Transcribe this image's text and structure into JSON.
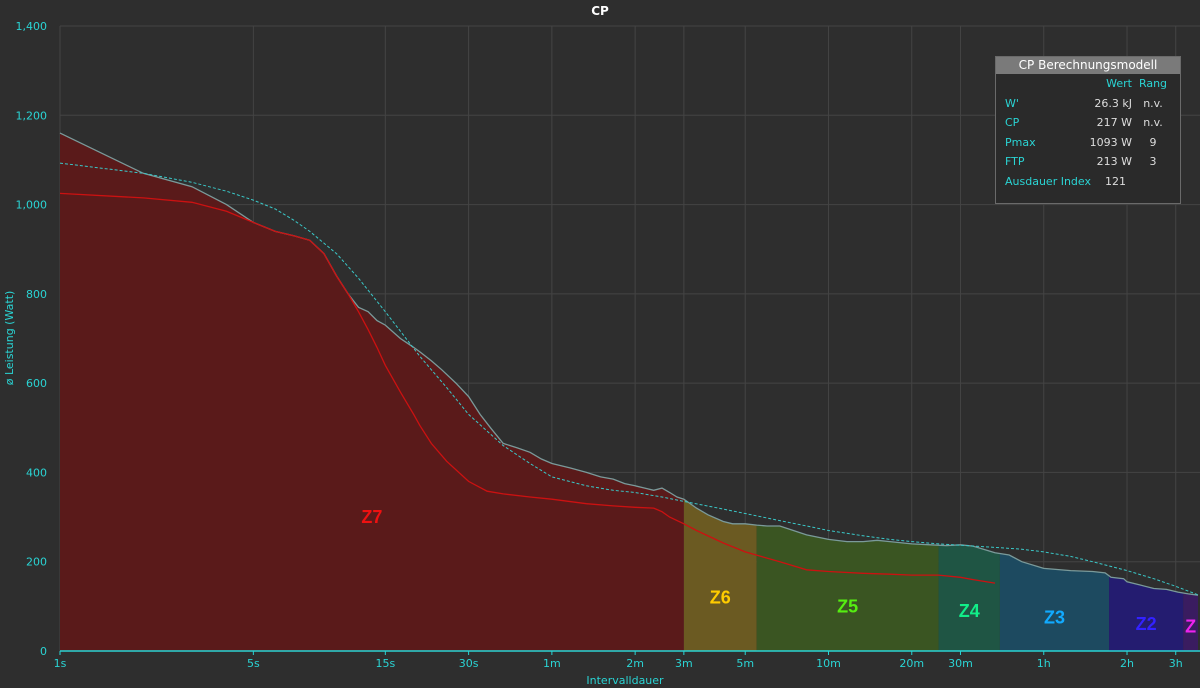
{
  "chart_data": {
    "type": "area",
    "title": "CP",
    "xlabel": "Intervalldauer",
    "ylabel": "ø Leistung (Watt)",
    "xscale": "log",
    "ylim": [
      0,
      1400
    ],
    "yticks": [
      0,
      200,
      400,
      600,
      800,
      1000,
      1200,
      1400
    ],
    "ytick_labels": [
      "0",
      "200",
      "400",
      "600",
      "800",
      "1,000",
      "1,200",
      "1,400"
    ],
    "xticks": [
      {
        "s": 1,
        "label": "1s"
      },
      {
        "s": 5,
        "label": "5s"
      },
      {
        "s": 15,
        "label": "15s"
      },
      {
        "s": 30,
        "label": "30s"
      },
      {
        "s": 60,
        "label": "1m"
      },
      {
        "s": 120,
        "label": "2m"
      },
      {
        "s": 180,
        "label": "3m"
      },
      {
        "s": 300,
        "label": "5m"
      },
      {
        "s": 600,
        "label": "10m"
      },
      {
        "s": 1200,
        "label": "20m"
      },
      {
        "s": 1800,
        "label": "30m"
      },
      {
        "s": 3600,
        "label": "1h"
      },
      {
        "s": 7200,
        "label": "2h"
      },
      {
        "s": 10800,
        "label": "3h"
      }
    ],
    "grid": true,
    "xmax_s": 13000,
    "series": [
      {
        "name": "",
        "color": "#7a9a9a",
        "x": [
          1,
          2,
          3,
          4,
          5,
          6,
          7,
          8,
          9,
          10,
          11,
          12,
          13,
          14,
          15,
          17,
          19,
          20,
          22,
          24,
          27,
          30,
          33,
          36,
          40,
          45,
          50,
          55,
          60,
          70,
          80,
          90,
          100,
          110,
          120,
          130,
          140,
          150,
          160,
          170,
          180,
          200,
          220,
          250,
          270,
          300,
          330,
          360,
          400,
          500,
          600,
          700,
          800,
          900,
          1000,
          1200,
          1400,
          1600,
          1800,
          2000,
          2400,
          2700,
          3000,
          3600,
          4500,
          5400,
          6000,
          6300,
          7000,
          7200,
          8000,
          9000,
          10000,
          11000,
          12000,
          13000
        ],
        "y": [
          1160,
          1070,
          1040,
          1000,
          960,
          940,
          930,
          920,
          890,
          840,
          800,
          770,
          760,
          740,
          730,
          700,
          680,
          670,
          650,
          630,
          600,
          570,
          530,
          500,
          465,
          455,
          445,
          430,
          420,
          410,
          400,
          390,
          385,
          375,
          370,
          365,
          360,
          365,
          355,
          345,
          340,
          320,
          305,
          290,
          285,
          285,
          282,
          280,
          280,
          260,
          250,
          245,
          245,
          248,
          245,
          240,
          238,
          236,
          238,
          235,
          220,
          215,
          200,
          185,
          180,
          178,
          175,
          165,
          162,
          155,
          148,
          140,
          138,
          132,
          128,
          125
        ]
      },
      {
        "name": "",
        "color": "#cc1111",
        "x": [
          1,
          2,
          3,
          4,
          5,
          6,
          7,
          8,
          9,
          10,
          11,
          12,
          13,
          14,
          15,
          17,
          19,
          20,
          22,
          25,
          30,
          35,
          40,
          50,
          60,
          80,
          100,
          120,
          140,
          150,
          160,
          180,
          200,
          250,
          300,
          400,
          500,
          600,
          800,
          1000,
          1200,
          1500,
          1800,
          2000,
          2400
        ],
        "y": [
          1025,
          1015,
          1005,
          985,
          960,
          940,
          930,
          920,
          890,
          840,
          800,
          760,
          720,
          680,
          640,
          580,
          530,
          505,
          465,
          425,
          380,
          358,
          352,
          345,
          340,
          330,
          325,
          322,
          320,
          312,
          300,
          285,
          270,
          242,
          222,
          200,
          182,
          178,
          174,
          172,
          170,
          170,
          165,
          160,
          152
        ]
      },
      {
        "name": "",
        "color": "#3ac8c8",
        "dashed": true,
        "x": [
          1,
          2,
          3,
          4,
          5,
          6,
          7,
          8,
          10,
          12,
          15,
          20,
          25,
          30,
          40,
          50,
          60,
          80,
          100,
          120,
          150,
          180,
          240,
          300,
          400,
          500,
          600,
          800,
          1000,
          1200,
          1500,
          1800,
          2400,
          3000,
          3600,
          4500,
          5400,
          7200,
          9000,
          10800,
          13000
        ],
        "y": [
          1093,
          1070,
          1050,
          1030,
          1010,
          990,
          965,
          940,
          890,
          835,
          760,
          660,
          590,
          530,
          460,
          420,
          390,
          370,
          360,
          355,
          345,
          335,
          320,
          308,
          292,
          280,
          270,
          258,
          250,
          245,
          240,
          237,
          232,
          228,
          222,
          212,
          200,
          180,
          162,
          145,
          126
        ]
      }
    ],
    "zones": [
      {
        "label": "Z7",
        "x0": 1,
        "x1": 180,
        "fill": "#5a1a1a",
        "label_color": "#ee1111",
        "label_y": 300
      },
      {
        "label": "Z6",
        "x0": 180,
        "x1": 330,
        "fill": "#6b5a22",
        "label_color": "#ffcc00",
        "label_y": 120
      },
      {
        "label": "Z5",
        "x0": 330,
        "x1": 1500,
        "fill": "#3a5522",
        "label_color": "#55ee11",
        "label_y": 100
      },
      {
        "label": "Z4",
        "x0": 1500,
        "x1": 2500,
        "fill": "#1f5544",
        "label_color": "#11ee88",
        "label_y": 90
      },
      {
        "label": "Z3",
        "x0": 2500,
        "x1": 6200,
        "fill": "#1d4a60",
        "label_color": "#11aaff",
        "label_y": 75
      },
      {
        "label": "Z2",
        "x0": 6200,
        "x1": 11500,
        "fill": "#241c70",
        "label_color": "#3322ff",
        "label_y": 60
      },
      {
        "label": "Z",
        "x0": 11500,
        "x1": 13000,
        "fill": "#3a1c60",
        "label_color": "#ee22ee",
        "label_y": 55
      }
    ]
  },
  "info_box": {
    "title": "CP Berechnungsmodell",
    "col_value": "Wert",
    "col_rank": "Rang",
    "rows": [
      {
        "label": "W'",
        "value": "26.3 kJ",
        "rank": "n.v."
      },
      {
        "label": "CP",
        "value": "217 W",
        "rank": "n.v."
      },
      {
        "label": "Pmax",
        "value": "1093 W",
        "rank": "9"
      },
      {
        "label": "FTP",
        "value": "213 W",
        "rank": "3"
      },
      {
        "label": "Ausdauer Index",
        "value": "121",
        "rank": ""
      }
    ]
  }
}
